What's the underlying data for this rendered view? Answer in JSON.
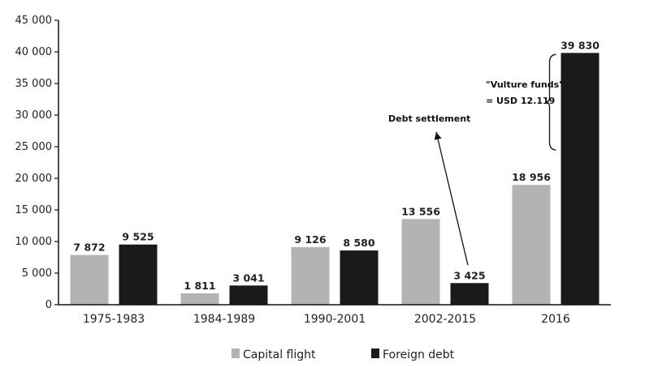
{
  "chart_data": {
    "type": "bar",
    "title": "",
    "xlabel": "",
    "ylabel": "",
    "ylim": [
      0,
      45000
    ],
    "y_ticks": [
      0,
      5000,
      10000,
      15000,
      20000,
      25000,
      30000,
      35000,
      40000,
      45000
    ],
    "y_tick_labels": [
      "0",
      "5 000",
      "10 000",
      "15 000",
      "20 000",
      "25 000",
      "30 000",
      "35 000",
      "40 000",
      "45 000"
    ],
    "grid": false,
    "legend_position": "bottom",
    "categories": [
      "1975-1983",
      "1984-1989",
      "1990-2001",
      "2002-2015",
      "2016"
    ],
    "series": [
      {
        "name": "Capital flight",
        "color": "#b3b3b3",
        "values": [
          7872,
          1811,
          9126,
          13556,
          18956
        ],
        "labels": [
          "7 872",
          "1 811",
          "9 126",
          "13 556",
          "18 956"
        ]
      },
      {
        "name": "Foreign debt",
        "color": "#1a1a1a",
        "values": [
          9525,
          3041,
          8580,
          3425,
          39830
        ],
        "labels": [
          "9 525",
          "3 041",
          "8 580",
          "3 425",
          "39 830"
        ]
      }
    ],
    "annotations": {
      "debt_settlement": "Debt settlement",
      "vulture_funds_line1": "\"Vulture funds\"",
      "vulture_funds_line2": "= USD 12.119"
    }
  }
}
